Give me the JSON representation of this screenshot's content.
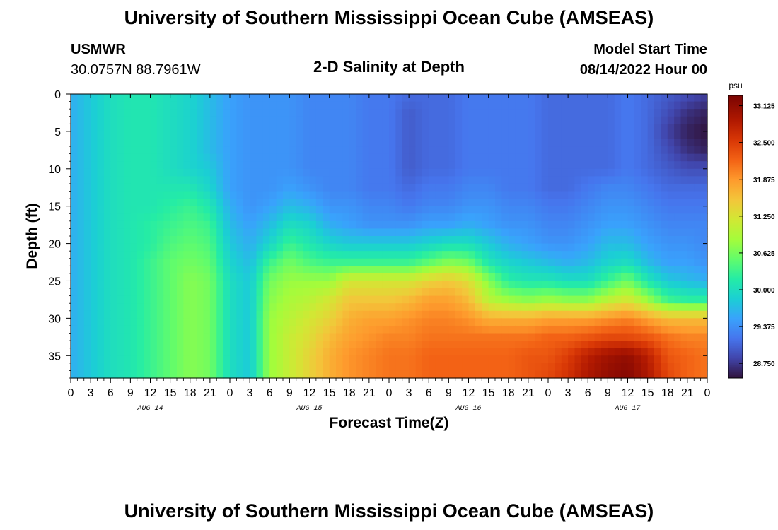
{
  "header": {
    "title": "University of Southern Mississippi Ocean Cube (AMSEAS)",
    "station_name": "USMWR",
    "station_coords": "30.0757N  88.7961W",
    "subtitle": "2-D Salinity at Depth",
    "model_label": "Model Start Time",
    "model_time": "08/14/2022 Hour 00"
  },
  "footer": {
    "title": "University of Southern Mississippi Ocean Cube (AMSEAS)"
  },
  "chart_data": {
    "type": "heatmap",
    "title": "2-D Salinity at Depth",
    "xlabel": "Forecast Time(Z)",
    "ylabel": "Depth (ft)",
    "x_range_hours": [
      0,
      96
    ],
    "y_range_ft": [
      0,
      38
    ],
    "x_tick_labels": [
      "0",
      "3",
      "6",
      "9",
      "12",
      "15",
      "18",
      "21",
      "0",
      "3",
      "6",
      "9",
      "12",
      "15",
      "18",
      "21",
      "0",
      "3",
      "6",
      "9",
      "12",
      "15",
      "18",
      "21",
      "0",
      "3",
      "6",
      "9",
      "12",
      "15",
      "18",
      "21",
      "0"
    ],
    "x_tick_hours": [
      0,
      3,
      6,
      9,
      12,
      15,
      18,
      21,
      24,
      27,
      30,
      33,
      36,
      39,
      42,
      45,
      48,
      51,
      54,
      57,
      60,
      63,
      66,
      69,
      72,
      75,
      78,
      81,
      84,
      87,
      90,
      93,
      96
    ],
    "date_labels": [
      {
        "text": "AUG 14",
        "hour": 12
      },
      {
        "text": "AUG 15",
        "hour": 36
      },
      {
        "text": "AUG 16",
        "hour": 60
      },
      {
        "text": "AUG 17",
        "hour": 84
      }
    ],
    "y_tick_labels": [
      "0",
      "5",
      "10",
      "15",
      "20",
      "25",
      "30",
      "35"
    ],
    "y_tick_values": [
      0,
      5,
      10,
      15,
      20,
      25,
      30,
      35
    ],
    "colorbar": {
      "unit": "psu",
      "min": 28.5,
      "max": 33.3,
      "tick_labels": [
        "33.125",
        "32.500",
        "31.875",
        "31.250",
        "30.625",
        "30.000",
        "29.375",
        "28.750"
      ],
      "tick_values": [
        33.125,
        32.5,
        31.875,
        31.25,
        30.625,
        30.0,
        29.375,
        28.75
      ]
    },
    "columns_hours": [
      0,
      3,
      6,
      9,
      12,
      15,
      18,
      21,
      24,
      27,
      30,
      33,
      36,
      39,
      42,
      45,
      48,
      51,
      54,
      57,
      60,
      63,
      66,
      69,
      72,
      75,
      78,
      81,
      84,
      87,
      90,
      93,
      96
    ],
    "rows_depth_ft": [
      0,
      2.5,
      5,
      7.5,
      10,
      12.5,
      15,
      17.5,
      20,
      22.5,
      25,
      27.5,
      30,
      32.5,
      35,
      37.5
    ],
    "salinity_psu": [
      [
        29.6,
        29.8,
        30.0,
        30.1,
        30.1,
        30.0,
        29.9,
        29.7,
        29.5,
        29.4,
        29.4,
        29.4,
        29.3,
        29.3,
        29.3,
        29.2,
        29.2,
        29.1,
        29.1,
        29.1,
        29.2,
        29.2,
        29.2,
        29.2,
        29.1,
        29.1,
        29.1,
        29.1,
        29.2,
        29.1,
        29.0,
        28.9,
        28.8
      ],
      [
        29.6,
        29.8,
        30.0,
        30.1,
        30.1,
        30.0,
        29.9,
        29.7,
        29.5,
        29.4,
        29.4,
        29.4,
        29.3,
        29.3,
        29.3,
        29.2,
        29.2,
        29.0,
        29.1,
        29.1,
        29.2,
        29.2,
        29.2,
        29.2,
        29.1,
        29.1,
        29.1,
        29.1,
        29.2,
        29.1,
        28.9,
        28.7,
        28.6
      ],
      [
        29.6,
        29.8,
        30.0,
        30.1,
        30.1,
        30.0,
        29.9,
        29.7,
        29.5,
        29.4,
        29.4,
        29.4,
        29.3,
        29.3,
        29.3,
        29.2,
        29.2,
        29.0,
        29.1,
        29.1,
        29.2,
        29.2,
        29.2,
        29.2,
        29.1,
        29.1,
        29.1,
        29.1,
        29.2,
        29.1,
        28.8,
        28.6,
        28.5
      ],
      [
        29.6,
        29.8,
        30.0,
        30.1,
        30.1,
        30.0,
        29.9,
        29.7,
        29.5,
        29.4,
        29.4,
        29.4,
        29.3,
        29.3,
        29.3,
        29.2,
        29.2,
        29.0,
        29.1,
        29.1,
        29.2,
        29.2,
        29.2,
        29.2,
        29.1,
        29.1,
        29.1,
        29.1,
        29.2,
        29.1,
        28.9,
        28.7,
        28.6
      ],
      [
        29.6,
        29.8,
        30.0,
        30.1,
        30.1,
        30.0,
        29.9,
        29.8,
        29.5,
        29.4,
        29.4,
        29.4,
        29.3,
        29.3,
        29.3,
        29.2,
        29.2,
        29.0,
        29.1,
        29.1,
        29.2,
        29.2,
        29.2,
        29.2,
        29.1,
        29.1,
        29.1,
        29.1,
        29.2,
        29.1,
        29.0,
        28.9,
        28.9
      ],
      [
        29.6,
        29.8,
        30.0,
        30.1,
        30.1,
        30.1,
        30.1,
        29.9,
        29.5,
        29.4,
        29.4,
        29.5,
        29.4,
        29.3,
        29.3,
        29.2,
        29.2,
        29.1,
        29.2,
        29.2,
        29.3,
        29.3,
        29.2,
        29.2,
        29.1,
        29.1,
        29.2,
        29.3,
        29.3,
        29.2,
        29.1,
        29.1,
        29.1
      ],
      [
        29.6,
        29.8,
        30.0,
        30.1,
        30.1,
        30.2,
        30.3,
        30.1,
        29.6,
        29.4,
        29.5,
        29.7,
        29.6,
        29.4,
        29.4,
        29.3,
        29.3,
        29.2,
        29.3,
        29.3,
        29.4,
        29.4,
        29.3,
        29.3,
        29.2,
        29.2,
        29.3,
        29.4,
        29.4,
        29.3,
        29.2,
        29.2,
        29.2
      ],
      [
        29.6,
        29.8,
        30.0,
        30.1,
        30.2,
        30.3,
        30.4,
        30.3,
        29.7,
        29.5,
        29.7,
        30.0,
        29.9,
        29.6,
        29.5,
        29.4,
        29.4,
        29.4,
        29.5,
        29.5,
        29.6,
        29.5,
        29.4,
        29.4,
        29.3,
        29.3,
        29.4,
        29.5,
        29.5,
        29.4,
        29.3,
        29.3,
        29.3
      ],
      [
        29.6,
        29.8,
        30.0,
        30.1,
        30.2,
        30.4,
        30.5,
        30.4,
        29.8,
        29.6,
        29.9,
        30.3,
        30.1,
        29.9,
        29.8,
        29.8,
        29.8,
        29.8,
        29.9,
        30.0,
        30.0,
        29.8,
        29.6,
        29.5,
        29.4,
        29.4,
        29.5,
        29.7,
        29.7,
        29.5,
        29.4,
        29.4,
        29.3
      ],
      [
        29.6,
        29.8,
        30.0,
        30.1,
        30.3,
        30.5,
        30.6,
        30.5,
        29.9,
        29.7,
        30.3,
        30.6,
        30.4,
        30.3,
        30.3,
        30.3,
        30.3,
        30.3,
        30.5,
        30.7,
        30.6,
        30.1,
        29.9,
        29.8,
        29.7,
        29.6,
        29.7,
        29.9,
        30.0,
        29.7,
        29.5,
        29.5,
        29.4
      ],
      [
        29.6,
        29.8,
        30.0,
        30.1,
        30.3,
        30.5,
        30.7,
        30.6,
        30.0,
        29.8,
        30.6,
        30.8,
        30.8,
        30.8,
        31.2,
        31.2,
        31.2,
        31.2,
        31.4,
        31.5,
        31.3,
        30.7,
        30.2,
        30.1,
        30.1,
        30.0,
        30.0,
        30.3,
        30.6,
        30.1,
        29.8,
        29.7,
        29.6
      ],
      [
        29.6,
        29.8,
        30.0,
        30.1,
        30.3,
        30.5,
        30.7,
        30.6,
        30.0,
        29.8,
        30.7,
        30.9,
        31.0,
        31.2,
        31.5,
        31.5,
        31.5,
        31.6,
        31.8,
        31.8,
        31.6,
        31.0,
        30.8,
        30.7,
        30.8,
        30.7,
        30.7,
        31.0,
        31.2,
        30.8,
        30.3,
        30.2,
        30.2
      ],
      [
        29.6,
        29.8,
        30.0,
        30.1,
        30.3,
        30.5,
        30.7,
        30.6,
        30.0,
        29.8,
        30.8,
        31.0,
        31.2,
        31.4,
        31.7,
        31.8,
        31.8,
        31.9,
        32.0,
        32.0,
        31.9,
        31.7,
        31.7,
        31.7,
        31.8,
        31.8,
        31.8,
        31.9,
        32.0,
        31.8,
        31.6,
        31.6,
        31.6
      ],
      [
        29.6,
        29.8,
        30.0,
        30.1,
        30.3,
        30.5,
        30.7,
        30.6,
        30.0,
        29.8,
        30.8,
        31.1,
        31.3,
        31.6,
        31.8,
        31.9,
        32.0,
        32.0,
        32.1,
        32.1,
        32.1,
        32.1,
        32.1,
        32.1,
        32.2,
        32.2,
        32.3,
        32.4,
        32.4,
        32.3,
        32.1,
        32.0,
        32.0
      ],
      [
        29.6,
        29.8,
        30.0,
        30.1,
        30.3,
        30.5,
        30.7,
        30.6,
        30.0,
        29.8,
        30.8,
        31.1,
        31.4,
        31.7,
        31.9,
        32.0,
        32.1,
        32.1,
        32.2,
        32.2,
        32.2,
        32.2,
        32.2,
        32.3,
        32.3,
        32.5,
        32.8,
        33.0,
        33.1,
        32.8,
        32.3,
        32.2,
        32.1
      ],
      [
        29.6,
        29.8,
        30.0,
        30.1,
        30.3,
        30.5,
        30.7,
        30.6,
        30.0,
        29.8,
        30.8,
        31.1,
        31.4,
        31.7,
        31.9,
        32.0,
        32.1,
        32.1,
        32.2,
        32.2,
        32.2,
        32.2,
        32.2,
        32.3,
        32.4,
        32.6,
        32.9,
        33.1,
        33.2,
        32.9,
        32.4,
        32.2,
        32.1
      ]
    ]
  }
}
